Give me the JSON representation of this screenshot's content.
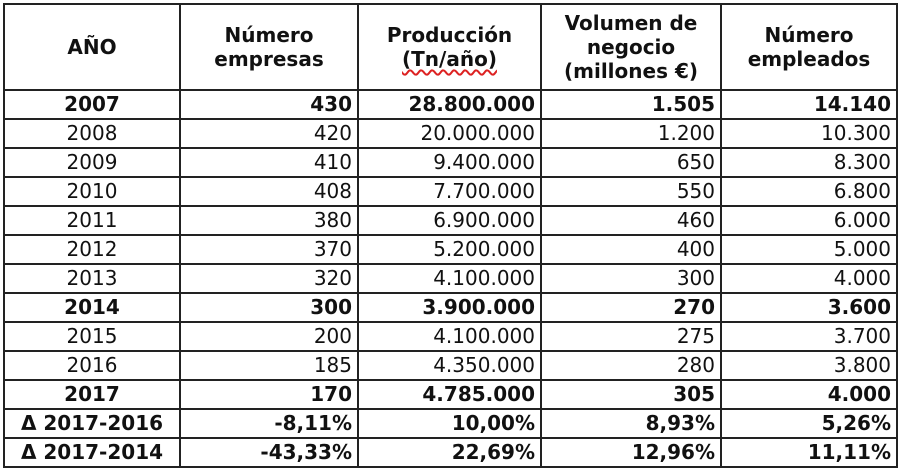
{
  "header": {
    "anio": "AÑO",
    "numero_empresas": [
      "Número",
      "empresas"
    ],
    "produccion": [
      "Producción",
      "(Tn/año)"
    ],
    "volumen_negocio": [
      "Volumen de",
      "negocio",
      "(millones €)"
    ],
    "numero_empleados": [
      "Número",
      "empleados"
    ]
  },
  "rows": [
    {
      "year": "2007",
      "empresas": "430",
      "produccion": "28.800.000",
      "volumen": "1.505",
      "empleados": "14.140"
    },
    {
      "year": "2008",
      "empresas": "420",
      "produccion": "20.000.000",
      "volumen": "1.200",
      "empleados": "10.300"
    },
    {
      "year": "2009",
      "empresas": "410",
      "produccion": "9.400.000",
      "volumen": "650",
      "empleados": "8.300"
    },
    {
      "year": "2010",
      "empresas": "408",
      "produccion": "7.700.000",
      "volumen": "550",
      "empleados": "6.800"
    },
    {
      "year": "2011",
      "empresas": "380",
      "produccion": "6.900.000",
      "volumen": "460",
      "empleados": "6.000"
    },
    {
      "year": "2012",
      "empresas": "370",
      "produccion": "5.200.000",
      "volumen": "400",
      "empleados": "5.000"
    },
    {
      "year": "2013",
      "empresas": "320",
      "produccion": "4.100.000",
      "volumen": "300",
      "empleados": "4.000"
    },
    {
      "year": "2014",
      "empresas": "300",
      "produccion": "3.900.000",
      "volumen": "270",
      "empleados": "3.600"
    },
    {
      "year": "2015",
      "empresas": "200",
      "produccion": "4.100.000",
      "volumen": "275",
      "empleados": "3.700"
    },
    {
      "year": "2016",
      "empresas": "185",
      "produccion": "4.350.000",
      "volumen": "280",
      "empleados": "3.800"
    },
    {
      "year": "2017",
      "empresas": "170",
      "produccion": "4.785.000",
      "volumen": "305",
      "empleados": "4.000"
    },
    {
      "year": "Δ 2017-2016",
      "empresas": "-8,11%",
      "produccion": "10,00%",
      "volumen": "8,93%",
      "empleados": "5,26%"
    },
    {
      "year": "Δ 2017-2014",
      "empresas": "-43,33%",
      "produccion": "22,69%",
      "volumen": "12,96%",
      "empleados": "11,11%"
    }
  ]
}
